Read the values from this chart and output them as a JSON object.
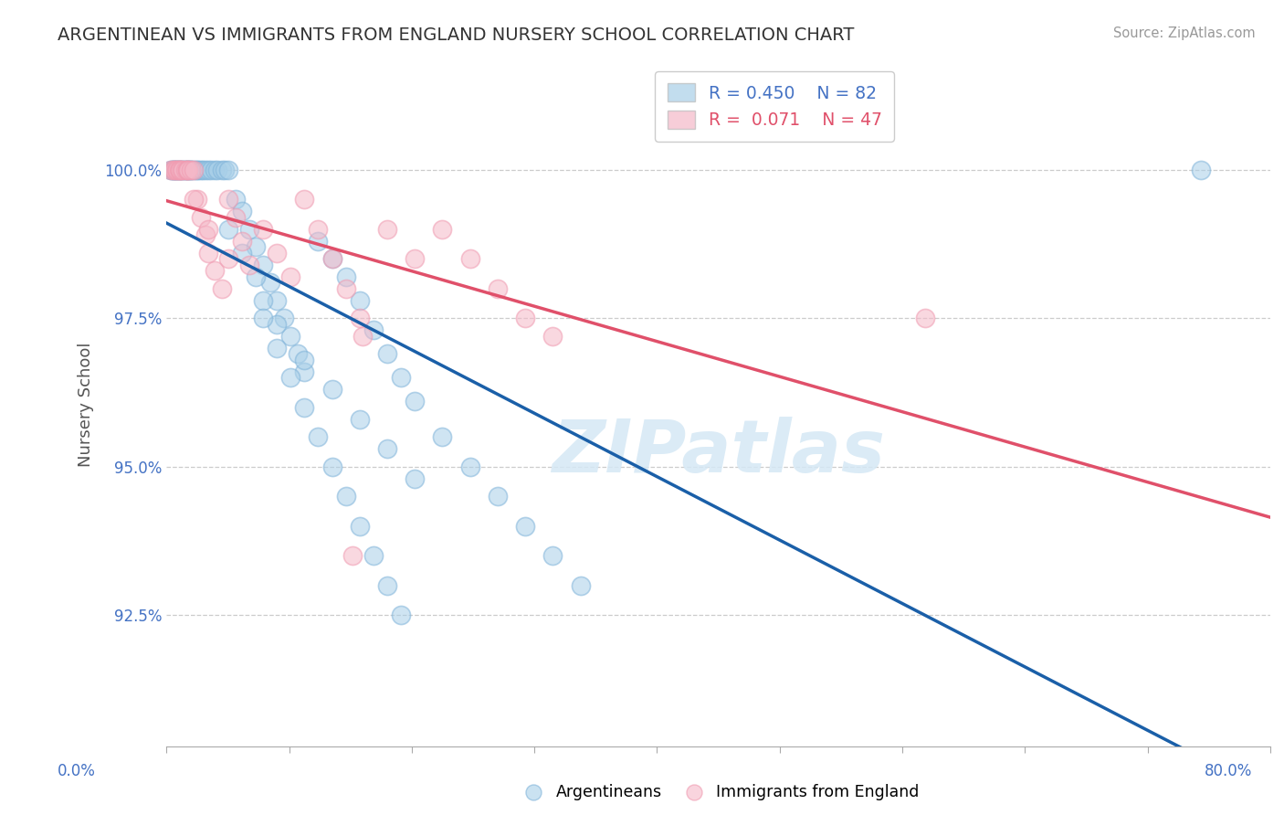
{
  "title": "ARGENTINEAN VS IMMIGRANTS FROM ENGLAND NURSERY SCHOOL CORRELATION CHART",
  "source_text": "Source: ZipAtlas.com",
  "ylabel": "Nursery School",
  "xlim": [
    0.0,
    80.0
  ],
  "ylim": [
    90.3,
    101.8
  ],
  "yticks": [
    92.5,
    95.0,
    97.5,
    100.0
  ],
  "ytick_labels": [
    "92.5%",
    "95.0%",
    "97.5%",
    "100.0%"
  ],
  "legend_r_blue": "R = 0.450",
  "legend_n_blue": "N = 82",
  "legend_r_pink": "R =  0.071",
  "legend_n_pink": "N = 47",
  "blue_fill": "#a8cfe8",
  "blue_edge": "#7fb3d9",
  "pink_fill": "#f5b8c8",
  "pink_edge": "#f09ab0",
  "blue_line_color": "#1a5fa8",
  "pink_line_color": "#e0506a",
  "legend_r_color": "#4472c4",
  "legend_n_color": "#e05555",
  "grid_color": "#cccccc",
  "spine_color": "#aaaaaa",
  "ytick_color": "#4472c4",
  "title_color": "#333333",
  "source_color": "#999999",
  "xlabel_color": "#4472c4",
  "ylabel_color": "#555555",
  "watermark_color": "#d5e8f5",
  "blue_x": [
    0.3,
    0.4,
    0.5,
    0.5,
    0.6,
    0.7,
    0.7,
    0.8,
    0.9,
    1.0,
    1.0,
    1.1,
    1.2,
    1.3,
    1.4,
    1.5,
    1.5,
    1.6,
    1.7,
    1.8,
    1.8,
    2.0,
    2.1,
    2.2,
    2.3,
    2.5,
    2.6,
    2.8,
    3.0,
    3.2,
    3.5,
    3.7,
    4.0,
    4.2,
    4.5,
    5.0,
    5.5,
    6.0,
    6.5,
    7.0,
    7.5,
    8.0,
    8.5,
    9.0,
    9.5,
    10.0,
    11.0,
    12.0,
    13.0,
    14.0,
    15.0,
    16.0,
    17.0,
    18.0,
    4.5,
    5.5,
    6.5,
    7.0,
    8.0,
    10.0,
    12.0,
    14.0,
    16.0,
    18.0,
    20.0,
    22.0,
    24.0,
    26.0,
    28.0,
    30.0,
    7.0,
    8.0,
    9.0,
    10.0,
    11.0,
    12.0,
    13.0,
    14.0,
    15.0,
    16.0,
    17.0,
    75.0
  ],
  "blue_y": [
    100.0,
    100.0,
    100.0,
    100.0,
    100.0,
    100.0,
    100.0,
    100.0,
    100.0,
    100.0,
    100.0,
    100.0,
    100.0,
    100.0,
    100.0,
    100.0,
    100.0,
    100.0,
    100.0,
    100.0,
    100.0,
    100.0,
    100.0,
    100.0,
    100.0,
    100.0,
    100.0,
    100.0,
    100.0,
    100.0,
    100.0,
    100.0,
    100.0,
    100.0,
    100.0,
    99.5,
    99.3,
    99.0,
    98.7,
    98.4,
    98.1,
    97.8,
    97.5,
    97.2,
    96.9,
    96.6,
    98.8,
    98.5,
    98.2,
    97.8,
    97.3,
    96.9,
    96.5,
    96.1,
    99.0,
    98.6,
    98.2,
    97.8,
    97.4,
    96.8,
    96.3,
    95.8,
    95.3,
    94.8,
    95.5,
    95.0,
    94.5,
    94.0,
    93.5,
    93.0,
    97.5,
    97.0,
    96.5,
    96.0,
    95.5,
    95.0,
    94.5,
    94.0,
    93.5,
    93.0,
    92.5,
    100.0
  ],
  "pink_x": [
    0.3,
    0.5,
    0.6,
    0.7,
    0.8,
    0.9,
    1.0,
    1.0,
    1.1,
    1.2,
    1.4,
    1.5,
    1.5,
    1.6,
    1.8,
    2.0,
    2.2,
    2.5,
    2.8,
    3.0,
    3.5,
    4.0,
    4.5,
    5.0,
    5.5,
    6.0,
    7.0,
    8.0,
    9.0,
    10.0,
    11.0,
    12.0,
    13.0,
    14.0,
    14.2,
    16.0,
    18.0,
    20.0,
    22.0,
    24.0,
    26.0,
    28.0,
    55.0,
    13.5,
    2.0,
    3.0,
    4.5
  ],
  "pink_y": [
    100.0,
    100.0,
    100.0,
    100.0,
    100.0,
    100.0,
    100.0,
    100.0,
    100.0,
    100.0,
    100.0,
    100.0,
    100.0,
    100.0,
    100.0,
    100.0,
    99.5,
    99.2,
    98.9,
    98.6,
    98.3,
    98.0,
    99.5,
    99.2,
    98.8,
    98.4,
    99.0,
    98.6,
    98.2,
    99.5,
    99.0,
    98.5,
    98.0,
    97.5,
    97.2,
    99.0,
    98.5,
    99.0,
    98.5,
    98.0,
    97.5,
    97.2,
    97.5,
    93.5,
    99.5,
    99.0,
    98.5
  ]
}
